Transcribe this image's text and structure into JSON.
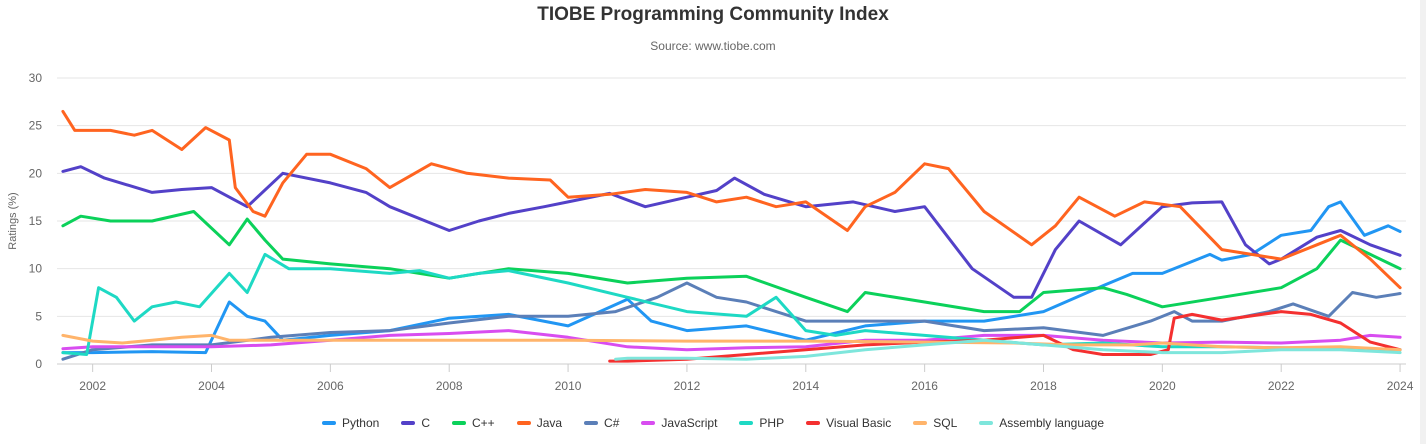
{
  "chart_data": {
    "type": "line",
    "title": "TIOBE Programming Community Index",
    "subtitle": "Source: www.tiobe.com",
    "ylabel": "Ratings (%)",
    "xlabel": "",
    "ylim": [
      0,
      30
    ],
    "xlim": [
      2001.4,
      2024.1
    ],
    "yticks": [
      0,
      5,
      10,
      15,
      20,
      25,
      30
    ],
    "xticks": [
      2002,
      2004,
      2006,
      2008,
      2010,
      2012,
      2014,
      2016,
      2018,
      2020,
      2022,
      2024
    ],
    "grid": true,
    "legend_position": "bottom",
    "series": [
      {
        "name": "Python",
        "color": "#2196f3",
        "points": [
          [
            2001.5,
            1.2
          ],
          [
            2002,
            1.2
          ],
          [
            2003,
            1.3
          ],
          [
            2003.9,
            1.2
          ],
          [
            2004.3,
            6.5
          ],
          [
            2004.6,
            5.0
          ],
          [
            2004.9,
            4.5
          ],
          [
            2005.2,
            2.5
          ],
          [
            2006,
            3.0
          ],
          [
            2007,
            3.5
          ],
          [
            2008,
            4.8
          ],
          [
            2009,
            5.2
          ],
          [
            2010,
            4.0
          ],
          [
            2011,
            6.8
          ],
          [
            2011.4,
            4.5
          ],
          [
            2012,
            3.5
          ],
          [
            2013,
            4.0
          ],
          [
            2014,
            2.5
          ],
          [
            2015,
            4.0
          ],
          [
            2016,
            4.5
          ],
          [
            2017,
            4.5
          ],
          [
            2018,
            5.5
          ],
          [
            2019,
            8.2
          ],
          [
            2019.5,
            9.5
          ],
          [
            2020,
            9.5
          ],
          [
            2020.8,
            11.5
          ],
          [
            2021,
            10.9
          ],
          [
            2021.5,
            11.5
          ],
          [
            2022,
            13.5
          ],
          [
            2022.5,
            14.0
          ],
          [
            2022.8,
            16.5
          ],
          [
            2023,
            17.0
          ],
          [
            2023.4,
            13.5
          ],
          [
            2023.8,
            14.5
          ],
          [
            2024,
            13.9
          ]
        ]
      },
      {
        "name": "C",
        "color": "#5341c8",
        "points": [
          [
            2001.5,
            20.2
          ],
          [
            2001.8,
            20.7
          ],
          [
            2002.2,
            19.5
          ],
          [
            2003,
            18.0
          ],
          [
            2003.5,
            18.3
          ],
          [
            2004,
            18.5
          ],
          [
            2004.6,
            16.5
          ],
          [
            2005.2,
            20.0
          ],
          [
            2006,
            19.0
          ],
          [
            2006.6,
            18.0
          ],
          [
            2007,
            16.5
          ],
          [
            2008,
            14.0
          ],
          [
            2008.5,
            15.0
          ],
          [
            2009,
            15.8
          ],
          [
            2009.6,
            16.5
          ],
          [
            2010,
            17.0
          ],
          [
            2010.7,
            17.9
          ],
          [
            2011.3,
            16.5
          ],
          [
            2012,
            17.5
          ],
          [
            2012.5,
            18.2
          ],
          [
            2012.8,
            19.5
          ],
          [
            2013.3,
            17.8
          ],
          [
            2014,
            16.5
          ],
          [
            2014.8,
            17.0
          ],
          [
            2015.5,
            16.0
          ],
          [
            2016,
            16.5
          ],
          [
            2016.8,
            10.0
          ],
          [
            2017.5,
            7.0
          ],
          [
            2017.8,
            7.0
          ],
          [
            2018.2,
            12.0
          ],
          [
            2018.6,
            15.0
          ],
          [
            2019.3,
            12.5
          ],
          [
            2020,
            16.5
          ],
          [
            2020.5,
            16.9
          ],
          [
            2021,
            17.0
          ],
          [
            2021.4,
            12.5
          ],
          [
            2021.8,
            10.5
          ],
          [
            2022,
            11.0
          ],
          [
            2022.6,
            13.3
          ],
          [
            2023,
            14.0
          ],
          [
            2023.5,
            12.5
          ],
          [
            2024,
            11.4
          ]
        ]
      },
      {
        "name": "C++",
        "color": "#0bd15a",
        "points": [
          [
            2001.5,
            14.5
          ],
          [
            2001.8,
            15.5
          ],
          [
            2002.3,
            15.0
          ],
          [
            2003,
            15.0
          ],
          [
            2003.7,
            16.0
          ],
          [
            2004.3,
            12.5
          ],
          [
            2004.6,
            15.2
          ],
          [
            2004.9,
            13.0
          ],
          [
            2005.2,
            11.0
          ],
          [
            2006,
            10.5
          ],
          [
            2007,
            10.0
          ],
          [
            2008,
            9.0
          ],
          [
            2009,
            10.0
          ],
          [
            2010,
            9.5
          ],
          [
            2011,
            8.5
          ],
          [
            2012,
            9.0
          ],
          [
            2013,
            9.2
          ],
          [
            2014,
            7.0
          ],
          [
            2014.7,
            5.5
          ],
          [
            2015,
            7.5
          ],
          [
            2016,
            6.5
          ],
          [
            2017,
            5.5
          ],
          [
            2017.6,
            5.5
          ],
          [
            2018,
            7.5
          ],
          [
            2019,
            8.0
          ],
          [
            2019.4,
            7.3
          ],
          [
            2020,
            6.0
          ],
          [
            2021,
            7.0
          ],
          [
            2022,
            8.0
          ],
          [
            2022.6,
            10.0
          ],
          [
            2023,
            13.0
          ],
          [
            2023.5,
            11.5
          ],
          [
            2024,
            10.0
          ]
        ]
      },
      {
        "name": "Java",
        "color": "#ff6420",
        "points": [
          [
            2001.5,
            26.5
          ],
          [
            2001.7,
            24.5
          ],
          [
            2002.3,
            24.5
          ],
          [
            2002.7,
            24.0
          ],
          [
            2003,
            24.5
          ],
          [
            2003.5,
            22.5
          ],
          [
            2003.9,
            24.8
          ],
          [
            2004.3,
            23.5
          ],
          [
            2004.4,
            18.5
          ],
          [
            2004.7,
            16.0
          ],
          [
            2004.9,
            15.5
          ],
          [
            2005.2,
            19.0
          ],
          [
            2005.6,
            22.0
          ],
          [
            2006,
            22.0
          ],
          [
            2006.6,
            20.5
          ],
          [
            2007,
            18.5
          ],
          [
            2007.7,
            21.0
          ],
          [
            2008.3,
            20.0
          ],
          [
            2009,
            19.5
          ],
          [
            2009.7,
            19.3
          ],
          [
            2010,
            17.5
          ],
          [
            2010.7,
            17.8
          ],
          [
            2011.3,
            18.3
          ],
          [
            2012,
            18.0
          ],
          [
            2012.5,
            17.0
          ],
          [
            2013,
            17.5
          ],
          [
            2013.5,
            16.5
          ],
          [
            2014,
            17.0
          ],
          [
            2014.7,
            14.0
          ],
          [
            2015,
            16.5
          ],
          [
            2015.5,
            18.0
          ],
          [
            2016,
            21.0
          ],
          [
            2016.4,
            20.5
          ],
          [
            2017,
            16.0
          ],
          [
            2017.8,
            12.5
          ],
          [
            2018.2,
            14.5
          ],
          [
            2018.6,
            17.5
          ],
          [
            2019.2,
            15.5
          ],
          [
            2019.7,
            17.0
          ],
          [
            2020.3,
            16.5
          ],
          [
            2021,
            12.0
          ],
          [
            2021.5,
            11.5
          ],
          [
            2022,
            11.0
          ],
          [
            2022.6,
            12.5
          ],
          [
            2023,
            13.5
          ],
          [
            2023.5,
            11.0
          ],
          [
            2024,
            8.0
          ]
        ]
      },
      {
        "name": "C#",
        "color": "#5b7fb8",
        "points": [
          [
            2001.5,
            0.5
          ],
          [
            2002,
            1.5
          ],
          [
            2003,
            2.0
          ],
          [
            2004,
            2.0
          ],
          [
            2005,
            2.8
          ],
          [
            2006,
            3.3
          ],
          [
            2007,
            3.5
          ],
          [
            2008,
            4.3
          ],
          [
            2009,
            5.0
          ],
          [
            2010,
            5.0
          ],
          [
            2010.8,
            5.5
          ],
          [
            2011.5,
            7.0
          ],
          [
            2012,
            8.5
          ],
          [
            2012.5,
            7.0
          ],
          [
            2013,
            6.5
          ],
          [
            2014,
            4.5
          ],
          [
            2015,
            4.5
          ],
          [
            2016,
            4.5
          ],
          [
            2017,
            3.5
          ],
          [
            2018,
            3.8
          ],
          [
            2019,
            3.0
          ],
          [
            2019.8,
            4.5
          ],
          [
            2020.2,
            5.5
          ],
          [
            2020.5,
            4.5
          ],
          [
            2021,
            4.5
          ],
          [
            2021.8,
            5.5
          ],
          [
            2022.2,
            6.3
          ],
          [
            2022.8,
            5.0
          ],
          [
            2023.2,
            7.5
          ],
          [
            2023.6,
            7.0
          ],
          [
            2024,
            7.4
          ]
        ]
      },
      {
        "name": "JavaScript",
        "color": "#d84df0",
        "points": [
          [
            2001.5,
            1.6
          ],
          [
            2002,
            1.8
          ],
          [
            2003,
            1.8
          ],
          [
            2004,
            1.8
          ],
          [
            2005,
            2.0
          ],
          [
            2006,
            2.5
          ],
          [
            2007,
            3.0
          ],
          [
            2008,
            3.2
          ],
          [
            2009,
            3.5
          ],
          [
            2010,
            2.8
          ],
          [
            2011,
            1.8
          ],
          [
            2012,
            1.5
          ],
          [
            2013,
            1.7
          ],
          [
            2014,
            1.8
          ],
          [
            2015,
            2.5
          ],
          [
            2016,
            2.5
          ],
          [
            2017,
            3.0
          ],
          [
            2018,
            3.0
          ],
          [
            2019,
            2.5
          ],
          [
            2020,
            2.2
          ],
          [
            2021,
            2.3
          ],
          [
            2022,
            2.2
          ],
          [
            2023,
            2.5
          ],
          [
            2023.5,
            3.0
          ],
          [
            2024,
            2.8
          ]
        ]
      },
      {
        "name": "PHP",
        "color": "#1ed9c4",
        "points": [
          [
            2001.5,
            1.2
          ],
          [
            2001.9,
            1.0
          ],
          [
            2002.1,
            8.0
          ],
          [
            2002.4,
            7.0
          ],
          [
            2002.7,
            4.5
          ],
          [
            2003,
            6.0
          ],
          [
            2003.4,
            6.5
          ],
          [
            2003.8,
            6.0
          ],
          [
            2004.3,
            9.5
          ],
          [
            2004.6,
            7.5
          ],
          [
            2004.9,
            11.5
          ],
          [
            2005.3,
            10.0
          ],
          [
            2006,
            10.0
          ],
          [
            2007,
            9.5
          ],
          [
            2007.5,
            9.8
          ],
          [
            2008,
            9.0
          ],
          [
            2008.5,
            9.5
          ],
          [
            2009,
            9.8
          ],
          [
            2010,
            8.5
          ],
          [
            2011,
            7.0
          ],
          [
            2012,
            5.5
          ],
          [
            2013,
            5.0
          ],
          [
            2013.5,
            7.0
          ],
          [
            2014,
            3.5
          ],
          [
            2014.5,
            3.0
          ],
          [
            2015,
            3.5
          ],
          [
            2016,
            3.0
          ],
          [
            2017,
            2.5
          ],
          [
            2018,
            2.0
          ],
          [
            2019,
            2.2
          ],
          [
            2020,
            1.8
          ],
          [
            2021,
            1.8
          ],
          [
            2022,
            1.7
          ],
          [
            2023,
            1.6
          ],
          [
            2024,
            1.5
          ]
        ]
      },
      {
        "name": "Visual Basic",
        "color": "#f43030",
        "points": [
          [
            2010.7,
            0.3
          ],
          [
            2011,
            0.3
          ],
          [
            2012,
            0.5
          ],
          [
            2013,
            1.0
          ],
          [
            2014,
            1.5
          ],
          [
            2015,
            2.0
          ],
          [
            2016,
            2.3
          ],
          [
            2017,
            2.5
          ],
          [
            2018,
            3.0
          ],
          [
            2018.5,
            1.5
          ],
          [
            2019,
            1.0
          ],
          [
            2019.8,
            1.0
          ],
          [
            2020.1,
            1.5
          ],
          [
            2020.2,
            4.8
          ],
          [
            2020.5,
            5.2
          ],
          [
            2021,
            4.6
          ],
          [
            2022,
            5.5
          ],
          [
            2022.5,
            5.2
          ],
          [
            2023,
            4.3
          ],
          [
            2023.5,
            2.3
          ],
          [
            2024,
            1.5
          ]
        ]
      },
      {
        "name": "SQL",
        "color": "#ffb46b",
        "points": [
          [
            2001.5,
            3.0
          ],
          [
            2002,
            2.4
          ],
          [
            2002.5,
            2.2
          ],
          [
            2003,
            2.5
          ],
          [
            2003.5,
            2.8
          ],
          [
            2004,
            3.0
          ],
          [
            2004.3,
            2.5
          ],
          [
            2006,
            2.5
          ],
          [
            2008,
            2.5
          ],
          [
            2010,
            2.5
          ],
          [
            2012,
            2.4
          ],
          [
            2014,
            2.4
          ],
          [
            2016,
            2.3
          ],
          [
            2017.5,
            2.2
          ],
          [
            2018.5,
            2.0
          ],
          [
            2019.5,
            2.0
          ],
          [
            2020,
            2.2
          ],
          [
            2021,
            1.8
          ],
          [
            2022,
            1.7
          ],
          [
            2023,
            1.8
          ],
          [
            2024,
            1.5
          ]
        ]
      },
      {
        "name": "Assembly language",
        "color": "#7ee6dc",
        "points": [
          [
            2010.8,
            0.5
          ],
          [
            2011,
            0.6
          ],
          [
            2012,
            0.6
          ],
          [
            2013,
            0.5
          ],
          [
            2014,
            0.8
          ],
          [
            2015,
            1.5
          ],
          [
            2016,
            2.0
          ],
          [
            2017,
            2.5
          ],
          [
            2018,
            2.0
          ],
          [
            2019,
            1.5
          ],
          [
            2020,
            1.2
          ],
          [
            2021,
            1.2
          ],
          [
            2022,
            1.5
          ],
          [
            2023,
            1.5
          ],
          [
            2024,
            1.2
          ]
        ]
      }
    ]
  }
}
